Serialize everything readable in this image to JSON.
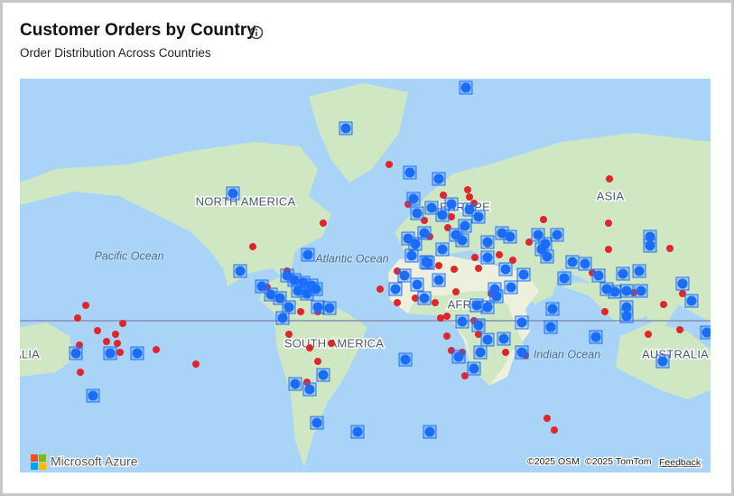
{
  "header": {
    "title": "Customer Orders by Country",
    "subtitle": "Order Distribution Across Countries"
  },
  "map": {
    "labels": [
      "NORTH AMERICA",
      "EUROPE",
      "ASIA",
      "Pacific Ocean",
      "Atlantic Ocean",
      "AFRICA",
      "SOUTH AMERICA",
      "Indian Ocean",
      "AUSTRALIA",
      "AUSTRALIA"
    ],
    "brand": "Microsoft Azure",
    "attribution": [
      "©2025 OSM",
      "©2025 TomTom"
    ],
    "feedback": "Feedback"
  }
}
